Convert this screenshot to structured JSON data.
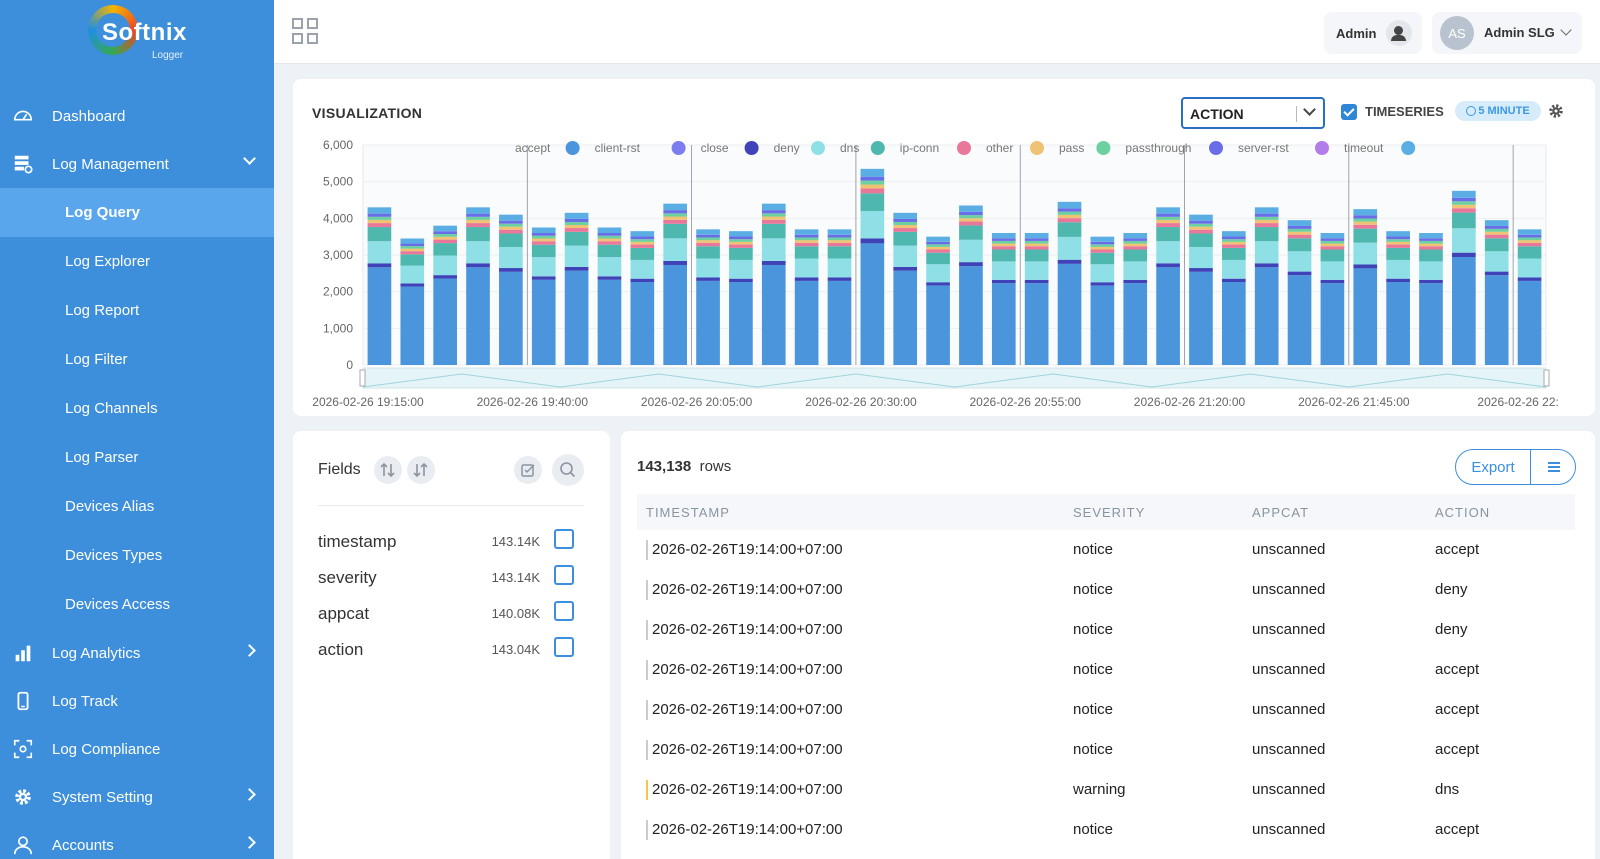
{
  "app": {
    "logo_text": "Softnix",
    "logo_sub": "Logger"
  },
  "sidebar": {
    "items": [
      {
        "label": "Dashboard",
        "icon": "dashboard-icon"
      },
      {
        "label": "Log Management",
        "icon": "log-management-icon",
        "expanded": true,
        "children": [
          "Log Query",
          "Log Explorer",
          "Log Report",
          "Log Filter",
          "Log Channels",
          "Log Parser",
          "Devices Alias",
          "Devices Types",
          "Devices Access"
        ],
        "active_child": "Log Query"
      },
      {
        "label": "Log Analytics",
        "icon": "analytics-icon"
      },
      {
        "label": "Log Track",
        "icon": "mobile-icon"
      },
      {
        "label": "Log Compliance",
        "icon": "compliance-icon"
      },
      {
        "label": "System Setting",
        "icon": "gear-icon"
      },
      {
        "label": "Accounts",
        "icon": "user-icon"
      }
    ]
  },
  "header": {
    "admin_label": "Admin",
    "avatar_initials": "AS",
    "user_name": "Admin SLG"
  },
  "visualization": {
    "title": "VISUALIZATION",
    "select_value": "ACTION",
    "timeseries_label": "TIMESERIES",
    "timeseries_checked": true,
    "interval_label": "5 MINUTE"
  },
  "chart_data": {
    "type": "bar",
    "stacked": true,
    "ylim": [
      0,
      6000
    ],
    "yticks": [
      "6,000",
      "5,000",
      "4,000",
      "3,000",
      "2,000",
      "1,000",
      "0"
    ],
    "xtick_labels": [
      "2026-02-26 19:15:00",
      "2026-02-26 19:40:00",
      "2026-02-26 20:05:00",
      "2026-02-26 20:30:00",
      "2026-02-26 20:55:00",
      "2026-02-26 21:20:00",
      "2026-02-26 21:45:00",
      "2026-02-26 22:"
    ],
    "legend_position": "top",
    "series": [
      {
        "name": "accept",
        "color": "#4a95dc"
      },
      {
        "name": "client-rst",
        "color": "#7d7cf0"
      },
      {
        "name": "close",
        "color": "#4042b8"
      },
      {
        "name": "deny",
        "color": "#8fe0e6"
      },
      {
        "name": "dns",
        "color": "#4fb8ae"
      },
      {
        "name": "ip-conn",
        "color": "#e8779a"
      },
      {
        "name": "other",
        "color": "#f0c274"
      },
      {
        "name": "pass",
        "color": "#6cd0a0"
      },
      {
        "name": "passthrough",
        "color": "#6a6de8"
      },
      {
        "name": "server-rst",
        "color": "#b27de8"
      },
      {
        "name": "timeout",
        "color": "#5aaee4"
      }
    ],
    "totals": [
      4300,
      3450,
      3800,
      4300,
      4100,
      3750,
      4150,
      3750,
      3650,
      4400,
      3700,
      3650,
      4400,
      3700,
      3700,
      5350,
      4150,
      3500,
      4350,
      3600,
      3600,
      4450,
      3500,
      3600,
      4300,
      4100,
      3650,
      4300,
      3950,
      3600,
      4250,
      3650,
      3600,
      4750,
      3950,
      3700
    ]
  },
  "fields_panel": {
    "title": "Fields",
    "fields": [
      {
        "name": "timestamp",
        "count": "143.14K"
      },
      {
        "name": "severity",
        "count": "143.14K"
      },
      {
        "name": "appcat",
        "count": "140.08K"
      },
      {
        "name": "action",
        "count": "143.04K"
      }
    ]
  },
  "table": {
    "row_count": "143,138",
    "rows_label": "rows",
    "export_label": "Export",
    "columns": [
      "TIMESTAMP",
      "SEVERITY",
      "APPCAT",
      "ACTION"
    ],
    "rows": [
      [
        "2026-02-26T19:14:00+07:00",
        "notice",
        "unscanned",
        "accept"
      ],
      [
        "2026-02-26T19:14:00+07:00",
        "notice",
        "unscanned",
        "deny"
      ],
      [
        "2026-02-26T19:14:00+07:00",
        "notice",
        "unscanned",
        "deny"
      ],
      [
        "2026-02-26T19:14:00+07:00",
        "notice",
        "unscanned",
        "accept"
      ],
      [
        "2026-02-26T19:14:00+07:00",
        "notice",
        "unscanned",
        "accept"
      ],
      [
        "2026-02-26T19:14:00+07:00",
        "notice",
        "unscanned",
        "accept"
      ],
      [
        "2026-02-26T19:14:00+07:00",
        "warning",
        "unscanned",
        "dns"
      ],
      [
        "2026-02-26T19:14:00+07:00",
        "notice",
        "unscanned",
        "accept"
      ]
    ]
  }
}
